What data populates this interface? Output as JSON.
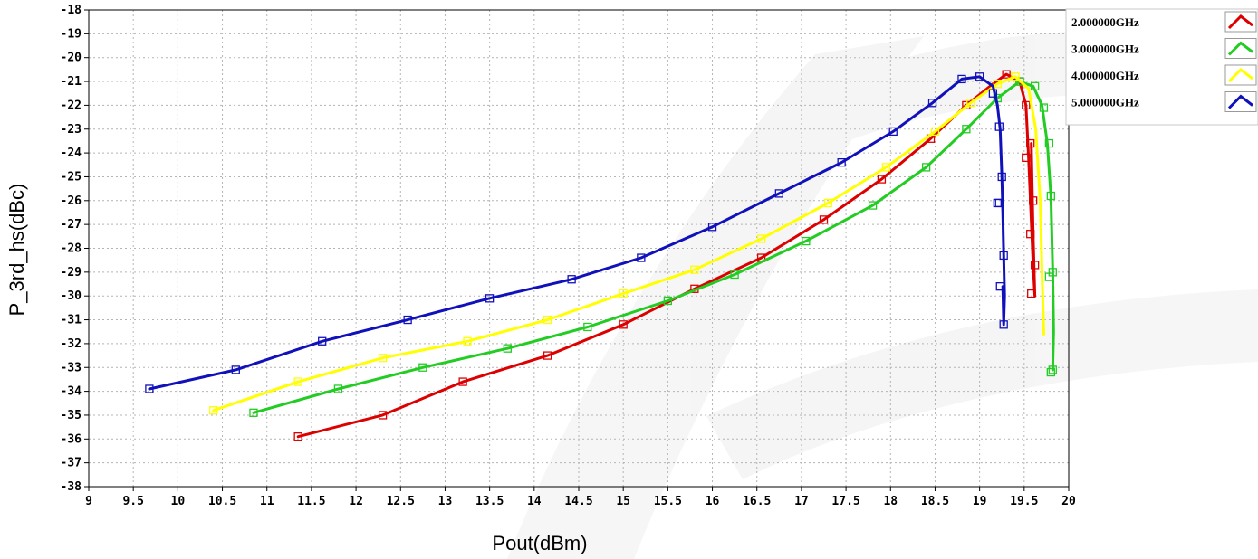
{
  "chart_data": {
    "type": "line",
    "title": "",
    "xlabel": "Pout(dBm)",
    "ylabel": "P_3rd_hs(dBc)",
    "xlim": [
      9,
      20
    ],
    "ylim": [
      -38,
      -18
    ],
    "grid": true,
    "legend_position": "top-right",
    "x_ticks": [
      "9",
      "9.5",
      "10",
      "10.5",
      "11",
      "11.5",
      "12",
      "12.5",
      "13",
      "13.5",
      "14",
      "14.5",
      "15",
      "15.5",
      "16",
      "16.5",
      "17",
      "17.5",
      "18",
      "18.5",
      "19",
      "19.5",
      "20"
    ],
    "y_ticks": [
      "-18",
      "-19",
      "-20",
      "-21",
      "-22",
      "-23",
      "-24",
      "-25",
      "-26",
      "-27",
      "-28",
      "-29",
      "-30",
      "-31",
      "-32",
      "-33",
      "-34",
      "-35",
      "-36",
      "-37",
      "-38"
    ],
    "series": [
      {
        "name": "2.000000GHz",
        "color": "#dd0000",
        "x": [
          11.35,
          12.3,
          13.2,
          14.15,
          15.0,
          15.8,
          16.55,
          17.25,
          17.9,
          18.45,
          18.85,
          19.15,
          19.3,
          19.45,
          19.52,
          19.55,
          19.57,
          19.6,
          19.62,
          19.6,
          19.58
        ],
        "y": [
          -35.9,
          -35.0,
          -33.6,
          -32.5,
          -31.2,
          -29.7,
          -28.4,
          -26.8,
          -25.1,
          -23.4,
          -22.0,
          -21.1,
          -20.7,
          -21.0,
          -22.0,
          -24.2,
          -26.0,
          -28.7,
          -30.0,
          -27.4,
          -23.6
        ],
        "markers": [
          [
            11.35,
            -35.9
          ],
          [
            12.3,
            -35.0
          ],
          [
            13.2,
            -33.6
          ],
          [
            14.15,
            -32.5
          ],
          [
            15.0,
            -31.2
          ],
          [
            15.8,
            -29.7
          ],
          [
            16.55,
            -28.4
          ],
          [
            17.25,
            -26.8
          ],
          [
            17.9,
            -25.1
          ],
          [
            18.45,
            -23.4
          ],
          [
            18.85,
            -22.0
          ],
          [
            19.3,
            -20.7
          ],
          [
            19.45,
            -21.0
          ],
          [
            19.52,
            -22.0
          ],
          [
            19.52,
            -24.2
          ],
          [
            19.6,
            -26.0
          ],
          [
            19.62,
            -28.7
          ],
          [
            19.58,
            -29.9
          ],
          [
            19.57,
            -27.4
          ],
          [
            19.57,
            -23.6
          ]
        ]
      },
      {
        "name": "3.000000GHz",
        "color": "#22cc22",
        "x": [
          10.85,
          11.8,
          12.75,
          13.7,
          14.6,
          15.5,
          16.25,
          17.05,
          17.8,
          18.4,
          18.85,
          19.2,
          19.45,
          19.6,
          19.7,
          19.76,
          19.8,
          19.82,
          19.83,
          19.82
        ],
        "y": [
          -34.9,
          -33.9,
          -33.0,
          -32.2,
          -31.3,
          -30.2,
          -29.1,
          -27.7,
          -26.2,
          -24.6,
          -23.0,
          -21.7,
          -21.0,
          -21.2,
          -22.0,
          -23.6,
          -25.8,
          -28.9,
          -31.5,
          -33.1
        ],
        "markers": [
          [
            10.85,
            -34.9
          ],
          [
            11.8,
            -33.9
          ],
          [
            12.75,
            -33.0
          ],
          [
            13.7,
            -32.2
          ],
          [
            14.6,
            -31.3
          ],
          [
            15.5,
            -30.2
          ],
          [
            16.25,
            -29.1
          ],
          [
            17.05,
            -27.7
          ],
          [
            17.8,
            -26.2
          ],
          [
            18.4,
            -24.6
          ],
          [
            18.85,
            -23.0
          ],
          [
            19.2,
            -21.7
          ],
          [
            19.45,
            -21.0
          ],
          [
            19.62,
            -21.2
          ],
          [
            19.72,
            -22.1
          ],
          [
            19.78,
            -23.6
          ],
          [
            19.8,
            -25.8
          ],
          [
            19.82,
            -29.0
          ],
          [
            19.78,
            -29.2
          ],
          [
            19.82,
            -33.1
          ],
          [
            19.8,
            -33.2
          ]
        ]
      },
      {
        "name": "4.000000GHz",
        "color": "#ffff00",
        "x": [
          10.4,
          11.35,
          12.3,
          13.25,
          14.15,
          15.0,
          15.8,
          16.55,
          17.3,
          17.95,
          18.5,
          18.9,
          19.2,
          19.4,
          19.55,
          19.63,
          19.68,
          19.7,
          19.72
        ],
        "y": [
          -34.8,
          -33.6,
          -32.6,
          -31.9,
          -31.0,
          -29.9,
          -28.9,
          -27.6,
          -26.1,
          -24.6,
          -23.1,
          -21.9,
          -21.1,
          -20.8,
          -21.3,
          -23.0,
          -26.0,
          -29.0,
          -31.6
        ],
        "markers": [
          [
            10.4,
            -34.8
          ],
          [
            11.35,
            -33.6
          ],
          [
            12.3,
            -32.6
          ],
          [
            13.25,
            -31.9
          ],
          [
            14.15,
            -31.0
          ],
          [
            15.0,
            -29.9
          ],
          [
            15.8,
            -28.9
          ],
          [
            16.55,
            -27.6
          ],
          [
            17.3,
            -26.1
          ],
          [
            17.95,
            -24.6
          ],
          [
            18.5,
            -23.1
          ],
          [
            18.9,
            -21.9
          ],
          [
            19.2,
            -21.1
          ],
          [
            19.4,
            -20.8
          ]
        ]
      },
      {
        "name": "5.000000GHz",
        "color": "#1111bb",
        "x": [
          9.68,
          10.65,
          11.62,
          12.58,
          13.5,
          14.42,
          15.2,
          16.0,
          16.75,
          17.45,
          18.03,
          18.47,
          18.8,
          19.0,
          19.15,
          19.2,
          19.23,
          19.25,
          19.26,
          19.27,
          19.28,
          19.27,
          19.26
        ],
        "y": [
          -33.9,
          -33.1,
          -31.9,
          -31.0,
          -30.1,
          -29.3,
          -28.4,
          -27.1,
          -25.7,
          -24.4,
          -23.1,
          -21.9,
          -20.9,
          -20.8,
          -21.2,
          -22.0,
          -23.0,
          -25.0,
          -26.5,
          -28.3,
          -30.0,
          -31.2,
          -29.6
        ],
        "markers": [
          [
            9.68,
            -33.9
          ],
          [
            10.65,
            -33.1
          ],
          [
            11.62,
            -31.9
          ],
          [
            12.58,
            -31.0
          ],
          [
            13.5,
            -30.1
          ],
          [
            14.42,
            -29.3
          ],
          [
            15.2,
            -28.4
          ],
          [
            16.0,
            -27.1
          ],
          [
            16.75,
            -25.7
          ],
          [
            17.45,
            -24.4
          ],
          [
            18.03,
            -23.1
          ],
          [
            18.47,
            -21.9
          ],
          [
            18.8,
            -20.9
          ],
          [
            19.0,
            -20.8
          ],
          [
            19.15,
            -21.5
          ],
          [
            19.22,
            -22.9
          ],
          [
            19.25,
            -25.0
          ],
          [
            19.2,
            -26.1
          ],
          [
            19.22,
            -26.1
          ],
          [
            19.27,
            -28.3
          ],
          [
            19.23,
            -29.6
          ],
          [
            19.27,
            -31.2
          ]
        ]
      }
    ]
  }
}
